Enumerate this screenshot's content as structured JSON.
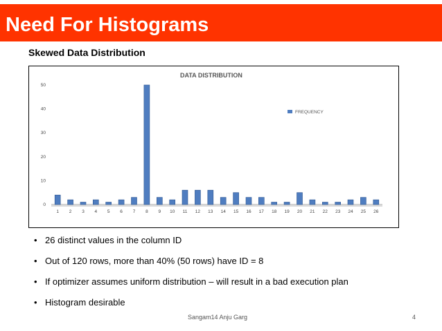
{
  "slide": {
    "title": "Need For Histograms",
    "subtitle": "Skewed Data Distribution",
    "bullets": [
      "26 distinct values in the column ID",
      "Out of 120 rows, more than 40%  (50 rows) have ID = 8",
      "If optimizer  assumes uniform distribution – will result in a bad execution plan",
      "Histogram desirable"
    ],
    "footer": "Sangam14    Anju Garg",
    "page_number": "4"
  },
  "colors": {
    "title_bar": "#ff3300",
    "bar": "#4f7dc0",
    "bar_dark": "#2c5591"
  },
  "chart_data": {
    "type": "bar",
    "title": "DATA DISTRIBUTION",
    "categories": [
      "1",
      "2",
      "3",
      "4",
      "5",
      "6",
      "7",
      "8",
      "9",
      "10",
      "11",
      "12",
      "13",
      "14",
      "15",
      "16",
      "17",
      "18",
      "19",
      "20",
      "21",
      "22",
      "23",
      "24",
      "25",
      "26"
    ],
    "series": [
      {
        "name": "FREQUENCY",
        "values": [
          4,
          2,
          1,
          2,
          1,
          2,
          3,
          50,
          3,
          2,
          6,
          6,
          6,
          3,
          5,
          3,
          3,
          1,
          1,
          5,
          2,
          1,
          1,
          2,
          3,
          2
        ]
      }
    ],
    "yticks": [
      "0",
      "10",
      "20",
      "30",
      "40",
      "50"
    ],
    "ylim": [
      0,
      50
    ],
    "legend": "right",
    "grid": false
  }
}
